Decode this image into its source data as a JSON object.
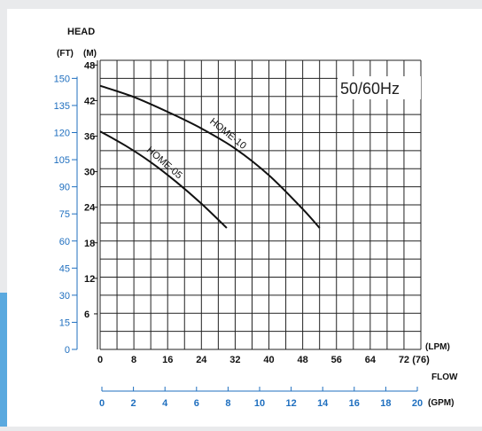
{
  "colors": {
    "background_outer": "#e9eaec",
    "panel": "#ffffff",
    "grid": "#222222",
    "curve": "#111111",
    "blue_axis": "#1f6fbf",
    "accent_tab": "#5aa9df"
  },
  "chart_data": {
    "type": "line",
    "title": "HEAD",
    "frequency_label": "50/60Hz",
    "axes": {
      "ft": {
        "unit_label": "(FT)",
        "ticks": [
          "0",
          "15",
          "30",
          "45",
          "60",
          "75",
          "90",
          "105",
          "120",
          "135",
          "150"
        ],
        "range": [
          0,
          160
        ]
      },
      "m": {
        "unit_label": "(M)",
        "ticks": [
          "6",
          "12",
          "18",
          "24",
          "30",
          "36",
          "42",
          "48"
        ],
        "range": [
          0,
          48.8
        ]
      },
      "lpm": {
        "unit_label": "(LPM)",
        "ticks": [
          "0",
          "8",
          "16",
          "24",
          "32",
          "40",
          "48",
          "56",
          "64",
          "72",
          "(76)"
        ],
        "range": [
          0,
          76
        ]
      },
      "gpm": {
        "unit_label": "(GPM)",
        "ticks": [
          "0",
          "2",
          "4",
          "6",
          "8",
          "10",
          "12",
          "14",
          "16",
          "18",
          "20"
        ],
        "range": [
          0,
          20
        ]
      },
      "flow_label": "FLOW"
    },
    "grid": true,
    "series": [
      {
        "name": "HOME-10",
        "x": [
          0,
          8,
          16,
          24,
          32,
          40,
          48,
          52
        ],
        "y": [
          44.5,
          42.6,
          40.1,
          37.3,
          33.9,
          29.4,
          23.7,
          20.5
        ]
      },
      {
        "name": "HOME-05",
        "x": [
          0,
          6,
          12,
          18,
          24,
          30
        ],
        "y": [
          36.8,
          34.4,
          31.6,
          28.3,
          24.6,
          20.5
        ]
      }
    ]
  }
}
